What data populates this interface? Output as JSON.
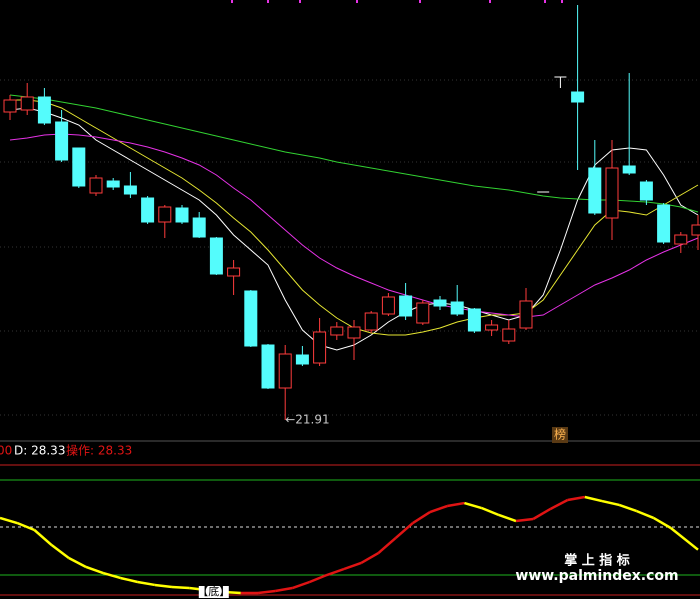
{
  "chart_data": [
    {
      "type": "candlestick",
      "ylim": [
        20.91,
        42.91
      ],
      "up_color": "#ff3c3c",
      "down_color": "#54fcfc",
      "flat_color": "#ffffff",
      "open": [
        37.31,
        37.41,
        38.06,
        36.81,
        35.51,
        33.26,
        33.86,
        33.61,
        33.01,
        31.81,
        32.51,
        32.01,
        31.01,
        29.11,
        28.36,
        25.66,
        23.51,
        25.16,
        24.76,
        26.16,
        26.01,
        26.41,
        27.21,
        28.11,
        26.76,
        27.91,
        27.81,
        27.46,
        26.41,
        25.86,
        26.51,
        33.31,
        39.06,
        38.31,
        34.51,
        32.01,
        34.61,
        33.81,
        32.66,
        30.71,
        31.16
      ],
      "high": [
        38.16,
        38.76,
        38.51,
        37.41,
        35.51,
        34.16,
        34.01,
        34.31,
        33.11,
        32.66,
        32.66,
        32.31,
        31.06,
        29.91,
        28.41,
        25.71,
        25.66,
        25.61,
        27.01,
        26.81,
        26.91,
        27.36,
        28.26,
        28.76,
        27.91,
        28.11,
        28.66,
        27.51,
        26.91,
        26.91,
        28.51,
        33.31,
        39.06,
        42.66,
        35.91,
        35.91,
        39.26,
        33.91,
        32.76,
        31.31,
        32.16
      ],
      "low": [
        36.91,
        37.16,
        36.66,
        34.81,
        33.51,
        33.11,
        33.41,
        33.01,
        31.71,
        31.01,
        31.71,
        31.01,
        29.16,
        28.16,
        25.56,
        23.46,
        21.91,
        24.61,
        24.61,
        25.91,
        24.91,
        26.26,
        27.11,
        26.91,
        26.66,
        27.41,
        27.11,
        26.26,
        26.11,
        25.71,
        26.41,
        33.31,
        38.51,
        34.41,
        32.16,
        30.91,
        34.16,
        32.66,
        30.71,
        30.26,
        30.41
      ],
      "close": [
        37.91,
        38.06,
        36.76,
        34.91,
        33.61,
        34.01,
        33.56,
        33.21,
        31.81,
        32.56,
        31.81,
        31.06,
        29.21,
        29.51,
        25.61,
        23.51,
        25.21,
        24.71,
        26.31,
        26.56,
        26.56,
        27.26,
        28.06,
        27.11,
        27.76,
        27.61,
        27.21,
        26.36,
        26.66,
        26.46,
        27.86,
        33.31,
        39.06,
        37.81,
        32.26,
        34.51,
        34.26,
        32.91,
        30.81,
        31.16,
        31.66
      ],
      "series": [
        {
          "color": "#ffffff",
          "values": [
            37.41,
            37.51,
            37.31,
            37.01,
            36.66,
            35.91,
            35.41,
            34.91,
            34.41,
            33.91,
            33.41,
            32.91,
            32.16,
            31.16,
            30.41,
            29.66,
            27.91,
            26.41,
            25.66,
            25.41,
            25.66,
            26.16,
            26.81,
            27.31,
            27.66,
            27.76,
            27.66,
            27.41,
            27.16,
            26.91,
            27.16,
            28.16,
            30.41,
            32.91,
            34.66,
            35.41,
            35.51,
            35.41,
            34.16,
            32.66,
            32.16
          ]
        },
        {
          "color": "#e6e632",
          "values": [
            37.91,
            37.91,
            37.81,
            37.51,
            37.01,
            36.51,
            36.01,
            35.51,
            35.01,
            34.51,
            34.01,
            33.41,
            32.76,
            32.01,
            31.31,
            30.41,
            29.41,
            28.41,
            27.66,
            27.01,
            26.51,
            26.26,
            26.16,
            26.16,
            26.31,
            26.51,
            26.81,
            27.01,
            27.16,
            27.16,
            27.26,
            27.91,
            29.16,
            30.41,
            31.66,
            32.41,
            32.31,
            32.16,
            32.66,
            33.16,
            33.66
          ]
        },
        {
          "color": "#e632e6",
          "values": [
            35.91,
            36.01,
            36.16,
            36.21,
            36.16,
            36.06,
            35.91,
            35.76,
            35.56,
            35.31,
            35.01,
            34.66,
            34.16,
            33.51,
            32.91,
            32.16,
            31.41,
            30.66,
            30.01,
            29.51,
            29.11,
            28.76,
            28.41,
            28.16,
            27.91,
            27.66,
            27.51,
            27.36,
            27.26,
            27.16,
            27.06,
            27.16,
            27.66,
            28.16,
            28.66,
            29.01,
            29.41,
            29.91,
            30.31,
            30.66,
            31.01
          ]
        },
        {
          "color": "#32d232",
          "values": [
            38.16,
            38.06,
            37.96,
            37.81,
            37.66,
            37.51,
            37.31,
            37.11,
            36.91,
            36.71,
            36.51,
            36.31,
            36.11,
            35.91,
            35.71,
            35.51,
            35.31,
            35.16,
            35.01,
            34.81,
            34.66,
            34.51,
            34.36,
            34.21,
            34.06,
            33.91,
            33.76,
            33.61,
            33.51,
            33.41,
            33.26,
            33.11,
            33.01,
            32.96,
            32.91,
            32.91,
            32.86,
            32.81,
            32.71,
            32.56,
            32.31
          ]
        }
      ],
      "low_annotation": {
        "value": 21.91,
        "label": "←21.91"
      },
      "badge": "榜"
    },
    {
      "type": "line",
      "ylim": [
        -10,
        100
      ],
      "rise_color": "#e01414",
      "fall_color": "#ffff00",
      "values": [
        55.2,
        50.9,
        45.0,
        32.3,
        21.3,
        13.7,
        8.6,
        4.4,
        1.0,
        -1.5,
        -3.2,
        -4.1,
        -5.8,
        -7.5,
        -8.3,
        -8.3,
        -6.6,
        -4.1,
        1.0,
        6.9,
        12.0,
        17.1,
        25.5,
        38.2,
        50.9,
        60.2,
        65.3,
        67.8,
        63.6,
        57.7,
        52.6,
        54.3,
        62.8,
        70.4,
        72.9,
        69.5,
        66.2,
        61.1,
        55.2,
        46.7,
        28.33
      ],
      "prefix_label": "00",
      "d_label": "D: 28.33",
      "op_label": "操作: 28.33",
      "marker_label": "【底】"
    }
  ],
  "watermark": {
    "title": "掌 上 指 标",
    "url": "www.palmindex.com"
  }
}
